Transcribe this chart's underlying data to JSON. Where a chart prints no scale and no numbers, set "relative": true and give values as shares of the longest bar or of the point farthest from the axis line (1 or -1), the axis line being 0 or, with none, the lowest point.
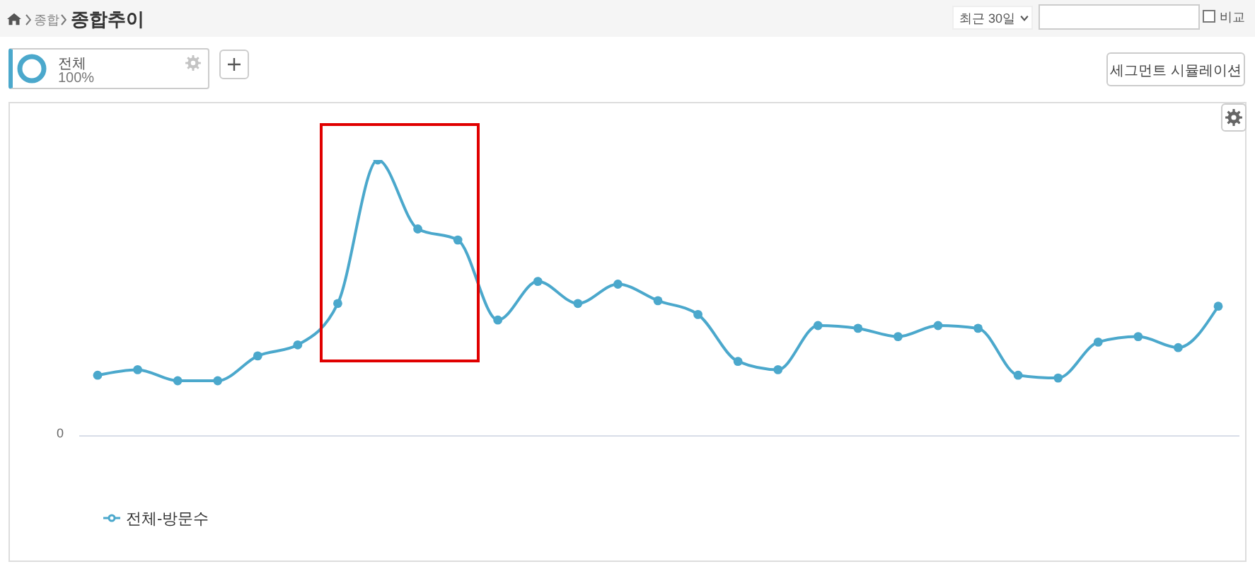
{
  "chart_data": {
    "type": "line",
    "title": "종합추이",
    "annotations": [
      "종합",
      "최근 30일",
      "비교",
      "전체",
      "100%",
      "세그먼트 시뮬레이션",
      "0"
    ],
    "categories": [
      null,
      null,
      null,
      null,
      null,
      null,
      null,
      null,
      null,
      null,
      null,
      null,
      null,
      null,
      null,
      null,
      null,
      null,
      null,
      null,
      null,
      null,
      null,
      null,
      null,
      null,
      null,
      null,
      null
    ],
    "series": [
      {
        "name": "전체-방문수",
        "color": "#4ba8cc",
        "values": [
          0.22,
          0.24,
          0.2,
          0.2,
          0.29,
          0.33,
          0.48,
          1,
          0.75,
          0.71,
          0.42,
          0.56,
          0.48,
          0.55,
          0.49,
          0.44,
          0.27,
          0.24,
          0.4,
          0.39,
          0.36,
          0.4,
          0.39,
          0.22,
          0.21,
          0.34,
          0.36,
          0.32,
          0.47
        ]
      }
    ],
    "relative": true,
    "legend": "bottom left",
    "marker": "circle",
    "line_style": "solid"
  }
}
